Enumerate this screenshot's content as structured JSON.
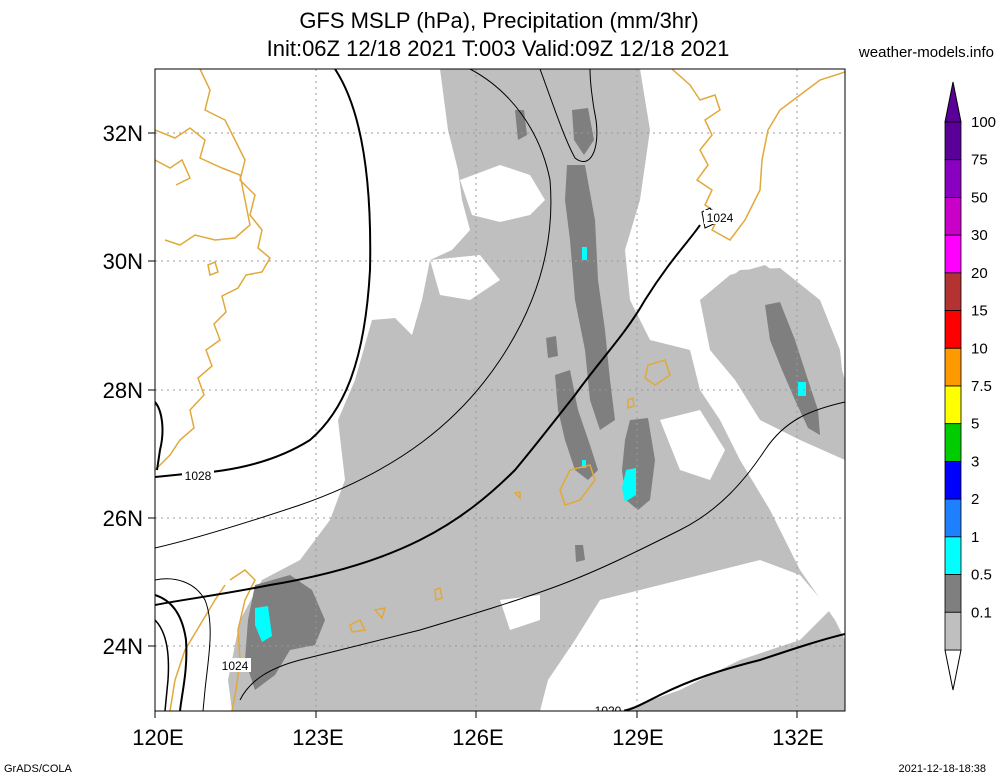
{
  "title": {
    "line1": "GFS MSLP (hPa), Precipitation (mm/3hr)",
    "line2": "Init:06Z 12/18 2021 T:003 Valid:09Z 12/18 2021"
  },
  "site": "weather-models.info",
  "footer": {
    "left": "GrADS/COLA",
    "right": "2021-12-18-18:38"
  },
  "map": {
    "lat_labels": [
      "32N",
      "30N",
      "28N",
      "26N",
      "24N"
    ],
    "lon_labels": [
      "120E",
      "123E",
      "126E",
      "129E",
      "132E"
    ],
    "contour_labels": [
      "1024",
      "1028",
      "1024",
      "1020"
    ],
    "colors": {
      "coast": "#e0a93a",
      "precip_light": "#bfbfbf",
      "precip_heavy": "#7f7f7f",
      "precip_cyan": "#00ffff"
    }
  },
  "legend": {
    "levels": [
      "100",
      "75",
      "50",
      "30",
      "20",
      "15",
      "10",
      "7.5",
      "5",
      "3",
      "2",
      "1",
      "0.5",
      "0.1"
    ],
    "colors": [
      "#5a0098",
      "#8a00c0",
      "#c800c8",
      "#ff00ff",
      "#b43232",
      "#ff0000",
      "#ff9900",
      "#ffff00",
      "#00cc00",
      "#0000ff",
      "#1e7fff",
      "#00ffff",
      "#7f7f7f",
      "#bfbfbf"
    ]
  }
}
